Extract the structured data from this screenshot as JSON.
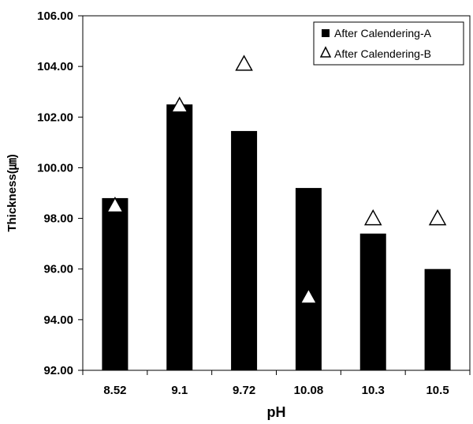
{
  "chart_data": {
    "type": "bar",
    "categories": [
      "8.52",
      "9.1",
      "9.72",
      "10.08",
      "10.3",
      "10.5"
    ],
    "series": [
      {
        "name": "After Calendering-A",
        "kind": "bar",
        "values": [
          98.8,
          102.5,
          101.45,
          99.2,
          97.4,
          96.0
        ],
        "color": "#000000"
      },
      {
        "name": "After Calendering-B",
        "kind": "marker",
        "marker": "triangle",
        "values": [
          98.5,
          102.45,
          104.1,
          94.9,
          98.0,
          98.0
        ]
      }
    ],
    "xlabel": "pH",
    "ylabel": "Thickness(㎛)",
    "ylim": [
      92.0,
      106.0
    ],
    "yticks": [
      "92.00",
      "94.00",
      "96.00",
      "98.00",
      "100.00",
      "102.00",
      "104.00",
      "106.00"
    ],
    "grid": false,
    "legend_position": "top-right"
  }
}
